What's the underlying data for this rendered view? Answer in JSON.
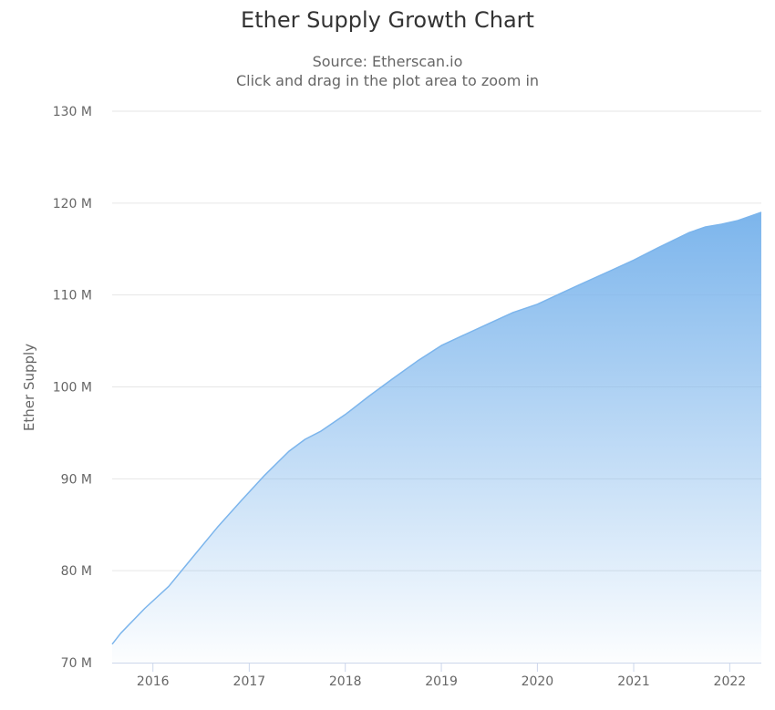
{
  "chart_data": {
    "type": "area",
    "title": "Ether Supply Growth Chart",
    "subtitle": "Source: Etherscan.io",
    "subtitle2": "Click and drag in the plot area to zoom in",
    "xlabel": "",
    "ylabel": "Ether Supply",
    "x_ticks": [
      "2016",
      "2017",
      "2018",
      "2019",
      "2020",
      "2021",
      "2022"
    ],
    "y_ticks": [
      "70 M",
      "80 M",
      "90 M",
      "100 M",
      "110 M",
      "120 M",
      "130 M"
    ],
    "ylim": [
      70,
      130
    ],
    "xlim": [
      "2015-07-30",
      "2022-05-01"
    ],
    "grid": "horizontal",
    "legend": "none",
    "colors": {
      "area_top": "#7cb5ec",
      "line": "#7cb5ec",
      "grid": "#e6e6e6",
      "axis": "#ccd6eb"
    },
    "series": [
      {
        "x": [
          "2015-07-30",
          "2015-09-01",
          "2015-12-01",
          "2016-03-01",
          "2016-06-01",
          "2016-09-01",
          "2016-12-01",
          "2017-03-01",
          "2017-06-01",
          "2017-08-01",
          "2017-10-01",
          "2018-01-01",
          "2018-04-01",
          "2018-07-01",
          "2018-10-01",
          "2019-01-01",
          "2019-04-01",
          "2019-07-01",
          "2019-10-01",
          "2020-01-01",
          "2020-04-01",
          "2020-07-01",
          "2020-10-01",
          "2021-01-01",
          "2021-04-01",
          "2021-08-01",
          "2021-10-01",
          "2021-12-01",
          "2022-02-01",
          "2022-05-01"
        ],
        "values": [
          72.0,
          73.2,
          75.9,
          78.3,
          81.5,
          84.7,
          87.6,
          90.4,
          93.0,
          94.3,
          95.2,
          97.0,
          99.0,
          100.9,
          102.8,
          104.5,
          105.7,
          106.9,
          108.1,
          109.0,
          110.2,
          111.4,
          112.6,
          113.8,
          115.1,
          116.8,
          117.4,
          117.7,
          118.1,
          119.0
        ]
      }
    ]
  }
}
